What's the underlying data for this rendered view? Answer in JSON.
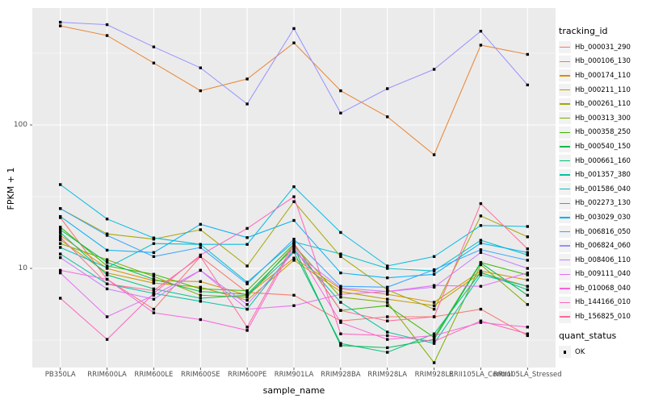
{
  "figure": {
    "background": "#FFFFFF",
    "panel_background": "#EBEBEB",
    "grid_color": "#FFFFFF",
    "tick_color": "#333333",
    "tick_label_color": "#4D4D4D"
  },
  "y_axis": {
    "title": "FPKM + 1",
    "tick_labels": [
      "100",
      "10"
    ]
  },
  "x_axis": {
    "title": "sample_name"
  },
  "legend": {
    "tracking_title": "tracking_id",
    "quant_title": "quant_status",
    "quant_label": "OK",
    "key_fill": "#F2F2F2"
  },
  "chart_data": {
    "type": "line",
    "title": "",
    "xlabel": "sample_name",
    "ylabel": "FPKM + 1",
    "y_scale": "log10",
    "ylim": [
      2.07,
      653
    ],
    "y_ticks": [
      100,
      10
    ],
    "y_minor_ticks": [
      3.162,
      31.62,
      316.2
    ],
    "grid": true,
    "legend_position": "right",
    "marker": {
      "shape": "filled-square",
      "color": "#000000",
      "status_label": "OK"
    },
    "categories": [
      "PB350LA",
      "RRIM600LA",
      "RRIM600LE",
      "RRIM600SE",
      "RRIM600PE",
      "RRIM901LA",
      "RRIM928BA",
      "RRIM928LA",
      "RRIM928LE",
      "RRII105LA_Control",
      "RRII105LA_Stressed"
    ],
    "series": [
      {
        "name": "Hb_000031_290",
        "color": "#F8766D",
        "values": [
          22.6,
          8.4,
          5.2,
          12.1,
          6.8,
          6.5,
          4.3,
          4.6,
          4.6,
          5.2,
          3.4
        ]
      },
      {
        "name": "Hb_000106_130",
        "color": "#EA8331",
        "values": [
          490,
          420,
          270,
          173,
          209,
          373,
          173,
          114,
          62,
          360,
          310
        ]
      },
      {
        "name": "Hb_000174_110",
        "color": "#D89000",
        "values": [
          17.0,
          10.0,
          8.2,
          8.1,
          6.5,
          11.8,
          7.2,
          6.6,
          5.8,
          9.6,
          8.3
        ]
      },
      {
        "name": "Hb_000211_110",
        "color": "#C09B00",
        "values": [
          15.8,
          9.3,
          7.9,
          7.4,
          6.0,
          11.4,
          6.9,
          6.1,
          5.5,
          9.3,
          7.5
        ]
      },
      {
        "name": "Hb_000261_110",
        "color": "#A3A500",
        "values": [
          26.1,
          17.4,
          16.0,
          18.6,
          10.4,
          29.2,
          12.1,
          7.1,
          5.2,
          23.2,
          16.6
        ]
      },
      {
        "name": "Hb_000313_300",
        "color": "#7CAE00",
        "values": [
          14.9,
          11.5,
          8.8,
          6.5,
          6.3,
          14.5,
          6.3,
          5.8,
          2.2,
          10.6,
          5.6
        ]
      },
      {
        "name": "Hb_000358_250",
        "color": "#39B600",
        "values": [
          19.4,
          10.4,
          9.1,
          7.2,
          7.0,
          14.8,
          5.1,
          5.5,
          3.3,
          11.0,
          9.0
        ]
      },
      {
        "name": "Hb_000540_150",
        "color": "#00BB4E",
        "values": [
          18.6,
          11.0,
          8.4,
          6.9,
          6.6,
          14.0,
          2.9,
          2.8,
          3.2,
          10.9,
          6.5
        ]
      },
      {
        "name": "Hb_000661_160",
        "color": "#00BF7D",
        "values": [
          17.8,
          9.0,
          7.2,
          6.2,
          6.5,
          13.0,
          3.0,
          2.6,
          3.5,
          9.4,
          7.1
        ]
      },
      {
        "name": "Hb_001357_380",
        "color": "#00C1A3",
        "values": [
          12.6,
          7.8,
          6.7,
          5.9,
          5.2,
          13.5,
          5.8,
          3.6,
          3.0,
          9.0,
          7.5
        ]
      },
      {
        "name": "Hb_001586_040",
        "color": "#00BFC4",
        "values": [
          14.0,
          10.1,
          14.9,
          14.7,
          8.0,
          15.3,
          12.6,
          10.0,
          9.6,
          15.7,
          12.4
        ]
      },
      {
        "name": "Hb_002273_130",
        "color": "#00BAE0",
        "values": [
          38.4,
          22.1,
          16.3,
          14.7,
          14.7,
          37.1,
          17.8,
          10.4,
          12.1,
          19.9,
          19.6
        ]
      },
      {
        "name": "Hb_003029_030",
        "color": "#00B0F6",
        "values": [
          23.0,
          13.4,
          12.9,
          20.3,
          16.4,
          21.6,
          9.3,
          8.6,
          9.1,
          15.0,
          12.9
        ]
      },
      {
        "name": "Hb_006816_050",
        "color": "#35A2FF",
        "values": [
          26.1,
          17.0,
          12.1,
          14.0,
          7.8,
          16.0,
          7.5,
          7.4,
          9.8,
          13.5,
          11.4
        ]
      },
      {
        "name": "Hb_006824_060",
        "color": "#9590FF",
        "values": [
          520,
          500,
          350,
          250,
          140,
          470,
          121,
          179,
          244,
          450,
          190
        ]
      },
      {
        "name": "Hb_008406_110",
        "color": "#C77CFF",
        "values": [
          11.9,
          7.2,
          6.1,
          9.7,
          5.6,
          13.0,
          7.3,
          6.9,
          7.4,
          12.9,
          10.0
        ]
      },
      {
        "name": "Hb_009111_040",
        "color": "#E76BF3",
        "values": [
          9.3,
          4.6,
          6.5,
          9.7,
          5.2,
          5.5,
          6.6,
          6.9,
          7.6,
          7.5,
          9.3
        ]
      },
      {
        "name": "Hb_010068_040",
        "color": "#FA62DB",
        "values": [
          9.7,
          8.4,
          4.9,
          4.4,
          3.7,
          14.4,
          4.2,
          3.2,
          3.4,
          4.2,
          3.9
        ]
      },
      {
        "name": "Hb_144166_010",
        "color": "#FF62BC",
        "values": [
          6.2,
          3.2,
          6.7,
          12.4,
          19.0,
          31.6,
          3.5,
          3.4,
          3.1,
          4.3,
          3.5
        ]
      },
      {
        "name": "Hb_156825_010",
        "color": "#FF6A98",
        "values": [
          16.5,
          7.8,
          7.0,
          12.1,
          3.9,
          15.0,
          5.1,
          4.3,
          4.6,
          28.3,
          13.7
        ]
      }
    ]
  }
}
